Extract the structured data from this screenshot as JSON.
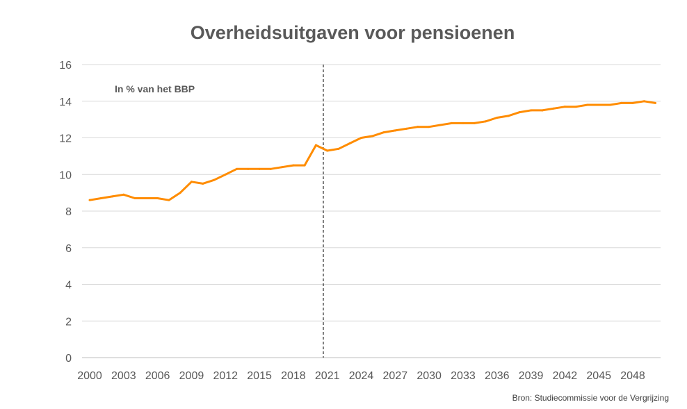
{
  "chart_data": {
    "type": "line",
    "title": "Overheidsuitgaven voor pensioenen",
    "annotation": "In % van het BBP",
    "source": "Bron: Studiecommissie voor de Vergrijzing",
    "xlabel": "",
    "ylabel": "",
    "ylim": [
      0,
      16
    ],
    "yticks": [
      0,
      2,
      4,
      6,
      8,
      10,
      12,
      14,
      16
    ],
    "xlim": [
      2000,
      2050
    ],
    "xticks": [
      2000,
      2003,
      2006,
      2009,
      2012,
      2015,
      2018,
      2021,
      2024,
      2027,
      2030,
      2033,
      2036,
      2039,
      2042,
      2045,
      2048
    ],
    "grid": "horizontal",
    "forecast_divider_x": 2020.65,
    "line_color": "#FF8C00",
    "x": [
      2000,
      2001,
      2002,
      2003,
      2004,
      2005,
      2006,
      2007,
      2008,
      2009,
      2010,
      2011,
      2012,
      2013,
      2014,
      2015,
      2016,
      2017,
      2018,
      2019,
      2020,
      2021,
      2022,
      2023,
      2024,
      2025,
      2026,
      2027,
      2028,
      2029,
      2030,
      2031,
      2032,
      2033,
      2034,
      2035,
      2036,
      2037,
      2038,
      2039,
      2040,
      2041,
      2042,
      2043,
      2044,
      2045,
      2046,
      2047,
      2048,
      2049,
      2050
    ],
    "values": [
      8.6,
      8.7,
      8.8,
      8.9,
      8.7,
      8.7,
      8.7,
      8.6,
      9.0,
      9.6,
      9.5,
      9.7,
      10.0,
      10.3,
      10.3,
      10.3,
      10.3,
      10.4,
      10.5,
      10.5,
      11.6,
      11.3,
      11.4,
      11.7,
      12.0,
      12.1,
      12.3,
      12.4,
      12.5,
      12.6,
      12.6,
      12.7,
      12.8,
      12.8,
      12.8,
      12.9,
      13.1,
      13.2,
      13.4,
      13.5,
      13.5,
      13.6,
      13.7,
      13.7,
      13.8,
      13.8,
      13.8,
      13.9,
      13.9,
      14.0,
      13.9
    ]
  }
}
